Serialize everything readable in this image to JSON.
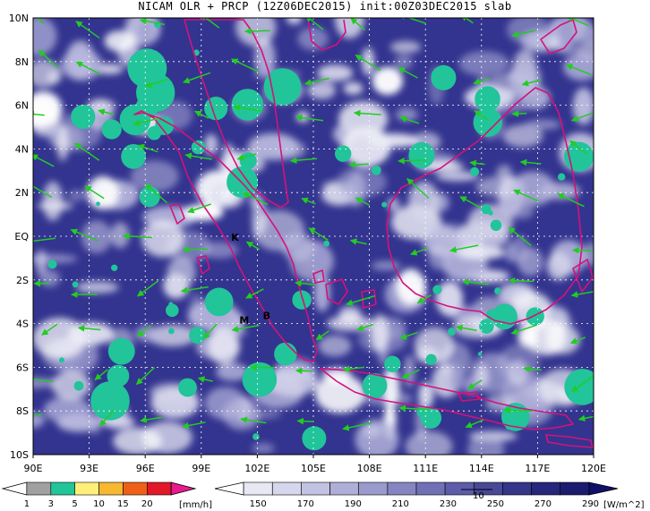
{
  "title": "NICAM OLR + PRCP (12Z06DEC2015) init:00Z03DEC2015 slab",
  "map": {
    "lon_labels": [
      "90E",
      "93E",
      "96E",
      "99E",
      "102E",
      "105E",
      "108E",
      "111E",
      "114E",
      "117E",
      "120E"
    ],
    "lat_labels": [
      "10N",
      "8N",
      "6N",
      "4N",
      "2N",
      "EQ",
      "2S",
      "4S",
      "6S",
      "8S",
      "10S"
    ],
    "lon_range": [
      90,
      120
    ],
    "lat_range": [
      -10,
      10
    ],
    "grid": "dotted",
    "station_markers": [
      {
        "label": "K",
        "lon": 100.8,
        "lat": -0.2
      },
      {
        "label": "M",
        "lon": 101.3,
        "lat": -4.0
      },
      {
        "label": "B",
        "lon": 102.5,
        "lat": -3.8
      }
    ],
    "colors": {
      "ocean_olr": "#33348f",
      "coast": "#d4127a",
      "wind_vector": "#22cc22"
    }
  },
  "precip_colorbar": {
    "ticks": [
      "1",
      "3",
      "5",
      "10",
      "15",
      "20"
    ],
    "unit": "[mm/h]",
    "colors": [
      "#ffffff",
      "#a0a0a0",
      "#22c49a",
      "#fff07a",
      "#f5b830",
      "#ee6018",
      "#e01828",
      "#e61b8c"
    ]
  },
  "olr_colorbar": {
    "ticks": [
      "150",
      "170",
      "190",
      "210",
      "230",
      "250",
      "270",
      "290"
    ],
    "unit": "[W/m^2]",
    "vector_ref": "10",
    "colors": [
      "#ffffff",
      "#e8e8f4",
      "#d6d6ec",
      "#c2c2e2",
      "#aeaed8",
      "#9a9acd",
      "#8585c2",
      "#7070b6",
      "#5c5caa",
      "#484898",
      "#35358a",
      "#26267c",
      "#1b1b70",
      "#10106a"
    ]
  }
}
